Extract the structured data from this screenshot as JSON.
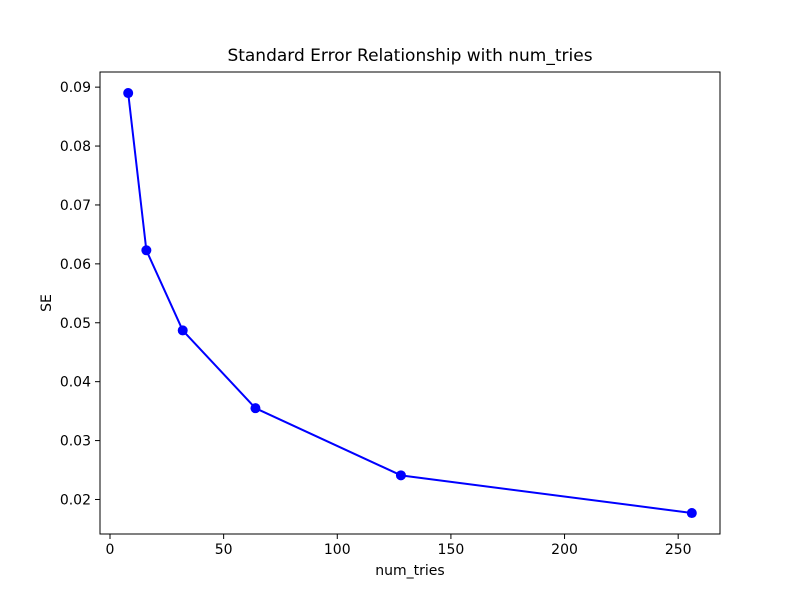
{
  "chart_data": {
    "type": "line",
    "title": "Standard Error Relationship with num_tries",
    "xlabel": "num_tries",
    "ylabel": "SE",
    "series": [
      {
        "name": "SE",
        "color": "#0000ff",
        "marker": "circle",
        "x": [
          8,
          16,
          32,
          64,
          128,
          256
        ],
        "y": [
          0.089,
          0.0623,
          0.0487,
          0.0355,
          0.0241,
          0.0177
        ]
      }
    ],
    "xlim": [
      -4.4,
      268.4
    ],
    "ylim": [
      0.01414,
      0.09257
    ],
    "xticks": {
      "values": [
        0,
        50,
        100,
        150,
        200,
        250
      ],
      "labels": [
        "0",
        "50",
        "100",
        "150",
        "200",
        "250"
      ]
    },
    "yticks": {
      "values": [
        0.02,
        0.03,
        0.04,
        0.05,
        0.06,
        0.07,
        0.08,
        0.09
      ],
      "labels": [
        "0.02",
        "0.03",
        "0.04",
        "0.05",
        "0.06",
        "0.07",
        "0.08",
        "0.09"
      ]
    },
    "grid": false,
    "legend": null,
    "background": "#ffffff"
  }
}
